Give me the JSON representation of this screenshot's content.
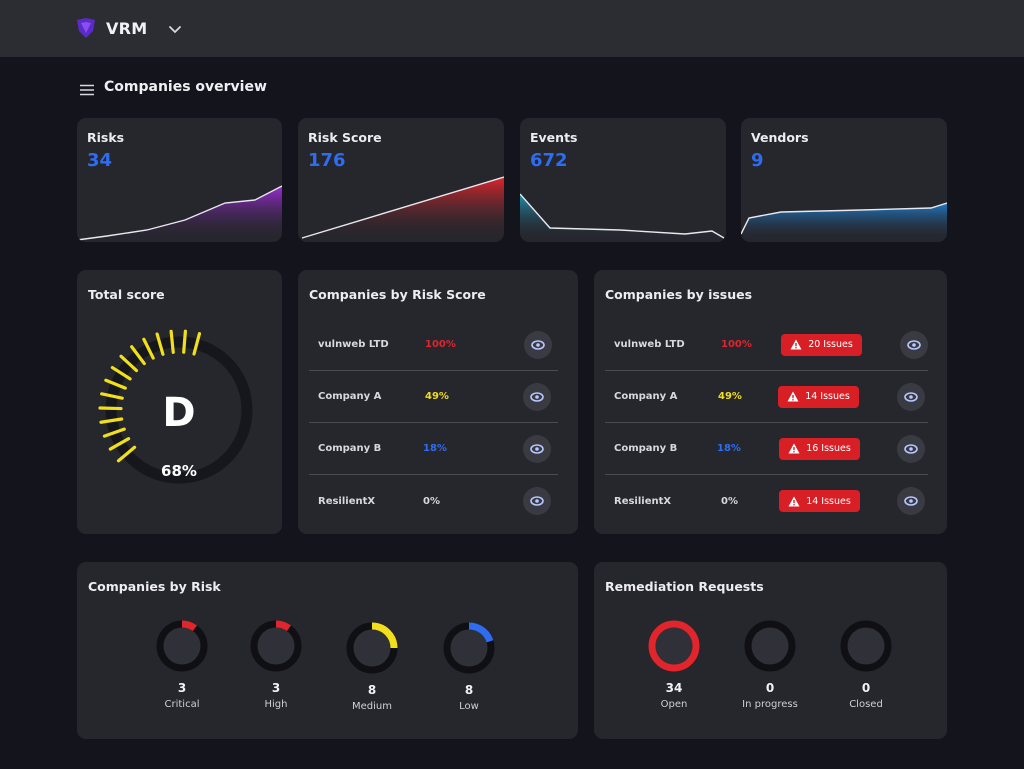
{
  "header": {
    "brand": "VRM",
    "page_title": "Companies overview"
  },
  "stats": [
    {
      "label": "Risks",
      "value": "34",
      "color": "#9b2bd6"
    },
    {
      "label": "Risk Score",
      "value": "176",
      "color": "#d81f26"
    },
    {
      "label": "Events",
      "value": "672",
      "color": "#1fa7c8"
    },
    {
      "label": "Vendors",
      "value": "9",
      "color": "#1e84d8"
    }
  ],
  "total_score": {
    "title": "Total score",
    "grade": "D",
    "percent": "68%",
    "fill_fraction": 0.68,
    "accent": "#f2df1c"
  },
  "by_risk_score": {
    "title": "Companies by Risk Score",
    "rows": [
      {
        "name": "vulnweb LTD",
        "pct": "100%",
        "color": "#e0252c"
      },
      {
        "name": "Company A",
        "pct": "49%",
        "color": "#f2df1c"
      },
      {
        "name": "Company B",
        "pct": "18%",
        "color": "#2f6df0"
      },
      {
        "name": "ResilientX",
        "pct": "0%",
        "color": "#d8d8df"
      }
    ]
  },
  "by_issues": {
    "title": "Companies by issues",
    "rows": [
      {
        "name": "vulnweb LTD",
        "pct": "100%",
        "color": "#e0252c",
        "issues": "20 Issues"
      },
      {
        "name": "Company A",
        "pct": "49%",
        "color": "#f2df1c",
        "issues": "14 Issues"
      },
      {
        "name": "Company B",
        "pct": "18%",
        "color": "#2f6df0",
        "issues": "16 Issues"
      },
      {
        "name": "ResilientX",
        "pct": "0%",
        "color": "#d8d8df",
        "issues": "14 Issues"
      }
    ]
  },
  "by_risk": {
    "title": "Companies by Risk",
    "items": [
      {
        "count": "3",
        "label": "Critical",
        "color": "#e0252c",
        "fraction": 0.1
      },
      {
        "count": "3",
        "label": "High",
        "color": "#e0252c",
        "fraction": 0.1
      },
      {
        "count": "8",
        "label": "Medium",
        "color": "#f2df1c",
        "fraction": 0.25
      },
      {
        "count": "8",
        "label": "Low",
        "color": "#2f6df0",
        "fraction": 0.2
      }
    ]
  },
  "remediation": {
    "title": "Remediation Requests",
    "items": [
      {
        "count": "34",
        "label": "Open",
        "color": "#e0252c",
        "fraction": 1.0
      },
      {
        "count": "0",
        "label": "In progress",
        "color": "#e0252c",
        "fraction": 0
      },
      {
        "count": "0",
        "label": "Closed",
        "color": "#e0252c",
        "fraction": 0
      }
    ]
  }
}
